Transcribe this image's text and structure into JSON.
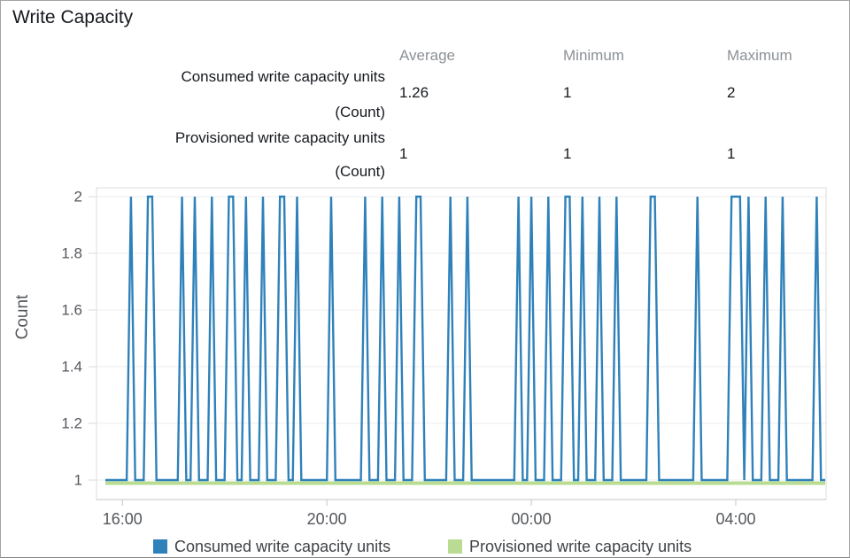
{
  "title": "Write Capacity",
  "stats": {
    "columns": [
      "Average",
      "Minimum",
      "Maximum"
    ],
    "rows": [
      {
        "label": "Consumed write capacity units",
        "unit": "(Count)",
        "average": "1.26",
        "minimum": "1",
        "maximum": "2"
      },
      {
        "label": "Provisioned write capacity units",
        "unit": "(Count)",
        "average": "1",
        "minimum": "1",
        "maximum": "1"
      }
    ]
  },
  "legend": [
    {
      "label": "Consumed write capacity units",
      "color": "#2f81ba"
    },
    {
      "label": "Provisioned write capacity units",
      "color": "#b9dc92"
    }
  ],
  "colors": {
    "consumed_blue": "#2f81ba",
    "provisioned_green": "#b9dc92",
    "gridline": "#ececec",
    "plot_border": "#dcdcdc",
    "axis_line": "#c6c6c6",
    "axis_text": "#54575c"
  },
  "chart_data": {
    "type": "line",
    "title": "Write Capacity",
    "ylabel": "Count",
    "ylim": [
      1,
      2
    ],
    "yticks": [
      2,
      1.8,
      1.6,
      1.4,
      1.2,
      1
    ],
    "grid": true,
    "legend_position": "bottom",
    "time_range_minutes": 845,
    "sample_minutes": 5,
    "xticks": [
      {
        "minute": 20,
        "label": "16:00"
      },
      {
        "minute": 260,
        "label": "20:00"
      },
      {
        "minute": 500,
        "label": "00:00"
      },
      {
        "minute": 740,
        "label": "04:00"
      }
    ],
    "series": [
      {
        "name": "Consumed write capacity units",
        "color": "#2f81ba",
        "type": "spikes",
        "baseline": 1,
        "peak": 2,
        "peak_minutes": [
          30,
          50,
          55,
          90,
          105,
          125,
          145,
          150,
          165,
          185,
          205,
          210,
          225,
          265,
          305,
          325,
          345,
          365,
          370,
          405,
          425,
          485,
          500,
          520,
          540,
          545,
          560,
          580,
          600,
          640,
          645,
          695,
          735,
          740,
          745,
          755,
          775,
          795,
          835
        ],
        "stats": {
          "average": 1.26,
          "minimum": 1,
          "maximum": 2
        }
      },
      {
        "name": "Provisioned write capacity units",
        "color": "#b9dc92",
        "type": "constant",
        "value": 1,
        "stats": {
          "average": 1,
          "minimum": 1,
          "maximum": 1
        }
      }
    ]
  }
}
